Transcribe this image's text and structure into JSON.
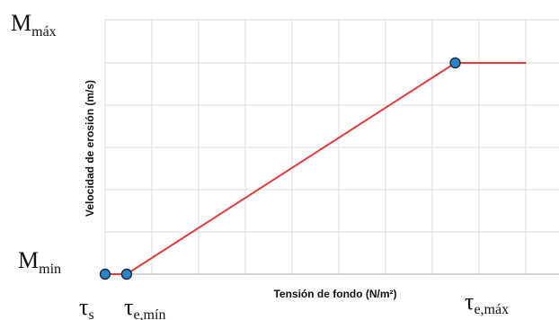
{
  "chart_data": {
    "type": "line",
    "xlabel": "Tensión de fondo (N/m²)",
    "ylabel": "Velocidad de erosión (m/s)",
    "grid": true,
    "legend": "none",
    "y_labels": {
      "max": {
        "main": "M",
        "sub": "máx"
      },
      "min": {
        "main": "M",
        "sub": "min"
      }
    },
    "x_labels": {
      "s": {
        "main": "τ",
        "sub": "s"
      },
      "emin": {
        "main": "τ",
        "sub": "e,mín"
      },
      "emax": {
        "main": "τ",
        "sub": "e,máx"
      }
    },
    "xlim": [
      0,
      10
    ],
    "ylim": [
      0,
      5
    ],
    "series": [
      {
        "color": "#e03c3c",
        "x": [
          0,
          0.5,
          8.15,
          9.8
        ],
        "y": [
          0,
          0,
          5,
          5
        ],
        "markers": [
          0,
          1,
          2
        ]
      }
    ],
    "marker_color": "#2b84c8"
  }
}
